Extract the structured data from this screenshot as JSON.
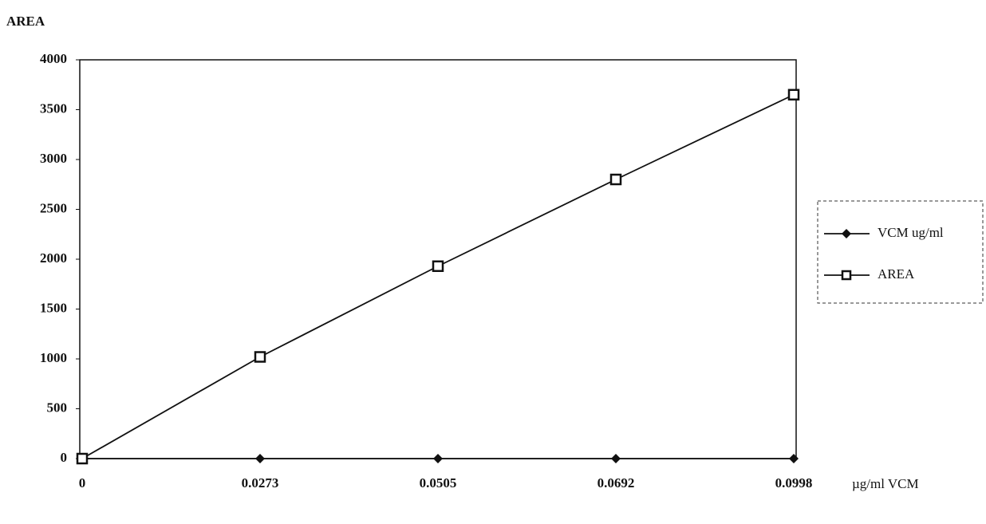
{
  "chart_data": {
    "type": "line",
    "y_label": "AREA",
    "x_label": "µg/ml   VCM",
    "categories": [
      "0",
      "0.0273",
      "0.0505",
      "0.0692",
      "0.0998"
    ],
    "series": [
      {
        "name": "VCM ug/ml",
        "color": "#111111",
        "marker": "diamond",
        "values": [
          0,
          0,
          0,
          0,
          0
        ]
      },
      {
        "name": "AREA",
        "color": "#111111",
        "marker": "square",
        "values": [
          0,
          1020,
          1930,
          2800,
          3650
        ]
      }
    ],
    "ylim": [
      0,
      4000
    ],
    "yticks": [
      0,
      500,
      1000,
      1500,
      2000,
      2500,
      3000,
      3500,
      4000
    ],
    "grid": false,
    "legend": "right"
  }
}
